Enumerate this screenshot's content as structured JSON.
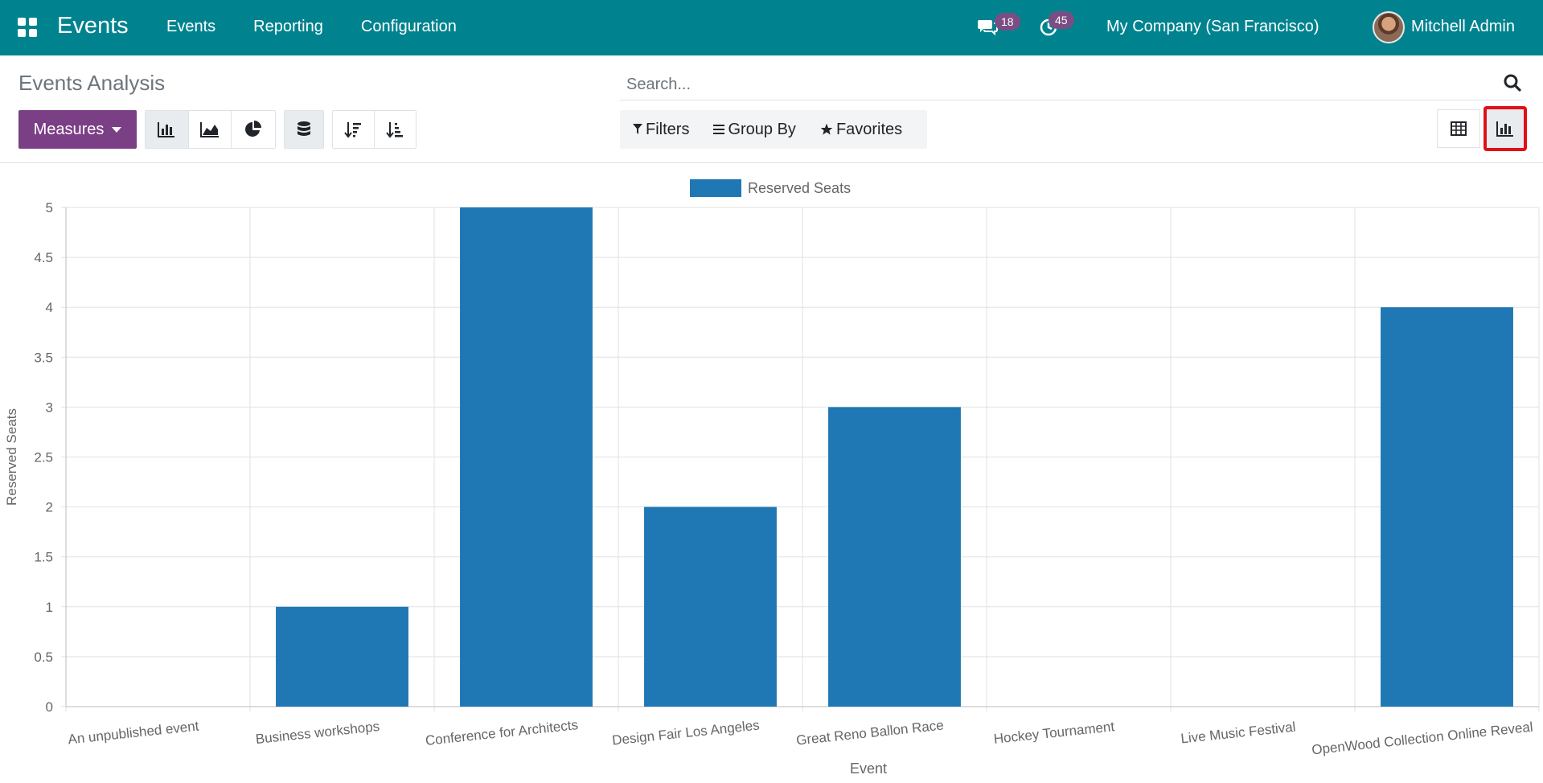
{
  "app": {
    "name": "Events",
    "menu": [
      "Events",
      "Reporting",
      "Configuration"
    ],
    "messages_count": "18",
    "activities_count": "45",
    "company": "My Company (San Francisco)",
    "user": "Mitchell Admin"
  },
  "control_panel": {
    "title": "Events Analysis",
    "measures_label": "Measures",
    "search_placeholder": "Search...",
    "filters_label": "Filters",
    "group_by_label": "Group By",
    "favorites_label": "Favorites",
    "active_view": "graph"
  },
  "colors": {
    "navbar": "#00838f",
    "primary": "#7b3f86",
    "bar": "#1f77b4",
    "badge": "#7a4e84",
    "highlight": "#e0101a"
  },
  "chart_data": {
    "type": "bar",
    "categories": [
      "An unpublished event",
      "Business workshops",
      "Conference for Architects",
      "Design Fair Los Angeles",
      "Great Reno Ballon Race",
      "Hockey Tournament",
      "Live Music Festival",
      "OpenWood Collection Online Reveal"
    ],
    "series": [
      {
        "name": "Reserved Seats",
        "values": [
          0,
          1,
          5,
          2,
          3,
          0,
          0,
          4
        ]
      }
    ],
    "xlabel": "Event",
    "ylabel": "Reserved Seats",
    "ylim": [
      0,
      5
    ],
    "yticks": [
      "0",
      "0.5",
      "1",
      "1.5",
      "2",
      "2.5",
      "3",
      "3.5",
      "4",
      "4.5",
      "5"
    ],
    "grid": true,
    "legend": "top-center"
  }
}
